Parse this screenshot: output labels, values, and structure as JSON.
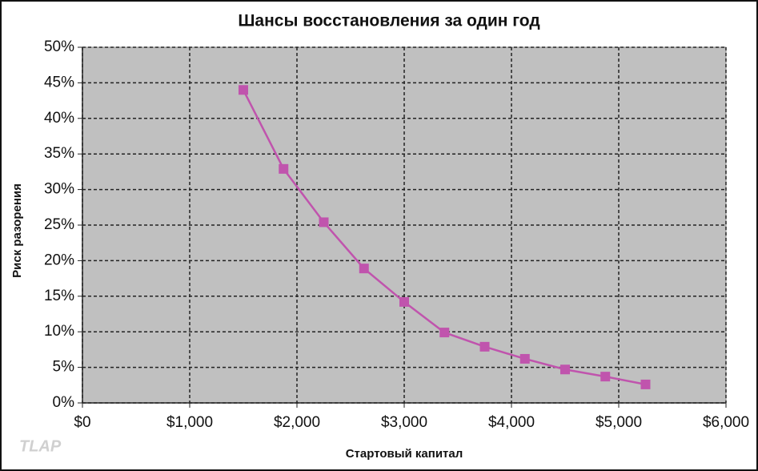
{
  "chart_data": {
    "type": "line",
    "title": "Шансы восстановления за один год",
    "x_label": "Стартовый капитал",
    "y_label": "Риск разорения",
    "watermark": "TLAP",
    "x": [
      1500,
      1875,
      2250,
      2625,
      3000,
      3375,
      3750,
      4125,
      4500,
      4875,
      5250
    ],
    "series": [
      {
        "name": "Риск разорения",
        "color": "#c054ad",
        "values": [
          44,
          32.9,
          25.4,
          18.9,
          14.2,
          9.9,
          7.9,
          6.2,
          4.7,
          3.7,
          2.6
        ]
      }
    ],
    "xlim": [
      0,
      6000
    ],
    "xticks": [
      {
        "value": 0,
        "label": "$0"
      },
      {
        "value": 1000,
        "label": "$1,000"
      },
      {
        "value": 2000,
        "label": "$2,000"
      },
      {
        "value": 3000,
        "label": "$3,000"
      },
      {
        "value": 4000,
        "label": "$4,000"
      },
      {
        "value": 5000,
        "label": "$5,000"
      },
      {
        "value": 6000,
        "label": "$6,000"
      }
    ],
    "ylim": [
      0,
      50
    ],
    "yticks": [
      {
        "value": 0,
        "label": "0%"
      },
      {
        "value": 5,
        "label": "5%"
      },
      {
        "value": 10,
        "label": "10%"
      },
      {
        "value": 15,
        "label": "15%"
      },
      {
        "value": 20,
        "label": "20%"
      },
      {
        "value": 25,
        "label": "25%"
      },
      {
        "value": 30,
        "label": "30%"
      },
      {
        "value": 35,
        "label": "35%"
      },
      {
        "value": 40,
        "label": "40%"
      },
      {
        "value": 45,
        "label": "45%"
      },
      {
        "value": 50,
        "label": "50%"
      }
    ],
    "grid": true
  }
}
